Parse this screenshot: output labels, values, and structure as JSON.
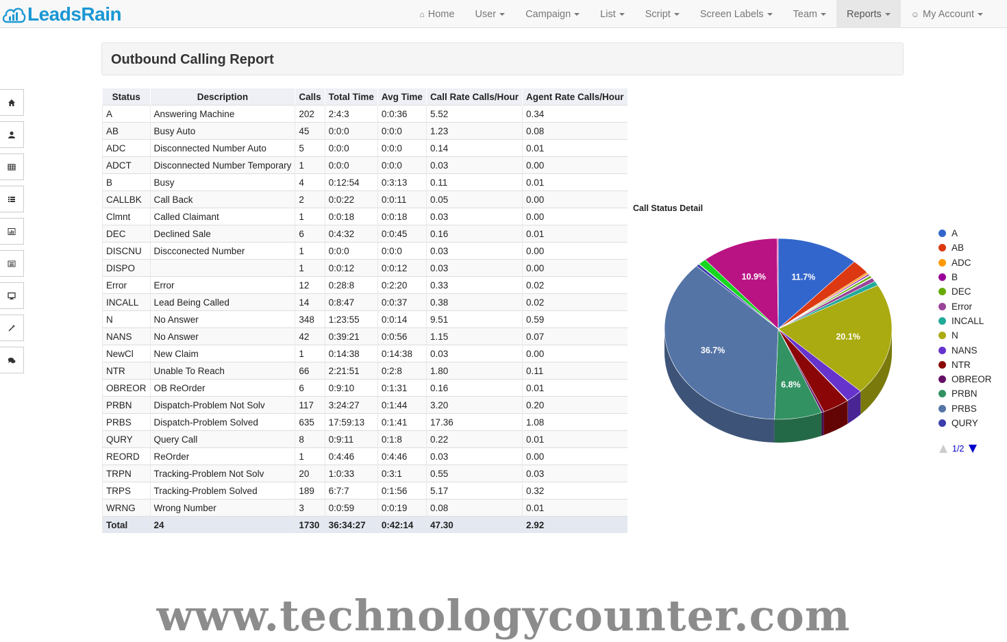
{
  "brand": "LeadsRain",
  "nav": [
    {
      "label": "Home",
      "icon": "home-icon",
      "caret": false
    },
    {
      "label": "User",
      "caret": true
    },
    {
      "label": "Campaign",
      "caret": true
    },
    {
      "label": "List",
      "caret": true
    },
    {
      "label": "Script",
      "caret": true
    },
    {
      "label": "Screen Labels",
      "caret": true
    },
    {
      "label": "Team",
      "caret": true
    },
    {
      "label": "Reports",
      "caret": true,
      "active": true
    },
    {
      "label": "My Account",
      "icon": "user-icon",
      "caret": true
    }
  ],
  "sidebar": [
    "home-icon",
    "user-icon",
    "table-icon",
    "list-icon",
    "bar-chart-icon",
    "list-alt-icon",
    "desktop-icon",
    "magic-wand-icon",
    "comments-icon"
  ],
  "page_title": "Outbound Calling Report",
  "table": {
    "headers": [
      "Status",
      "Description",
      "Calls",
      "Total Time",
      "Avg Time",
      "Call Rate Calls/Hour",
      "Agent Rate Calls/Hour"
    ],
    "rows": [
      [
        "A",
        "Answering Machine",
        "202",
        "2:4:3",
        "0:0:36",
        "5.52",
        "0.34"
      ],
      [
        "AB",
        "Busy Auto",
        "45",
        "0:0:0",
        "0:0:0",
        "1.23",
        "0.08"
      ],
      [
        "ADC",
        "Disconnected Number Auto",
        "5",
        "0:0:0",
        "0:0:0",
        "0.14",
        "0.01"
      ],
      [
        "ADCT",
        "Disconnected Number Temporary",
        "1",
        "0:0:0",
        "0:0:0",
        "0.03",
        "0.00"
      ],
      [
        "B",
        "Busy",
        "4",
        "0:12:54",
        "0:3:13",
        "0.11",
        "0.01"
      ],
      [
        "CALLBK",
        "Call Back",
        "2",
        "0:0:22",
        "0:0:11",
        "0.05",
        "0.00"
      ],
      [
        "Clmnt",
        "Called Claimant",
        "1",
        "0:0:18",
        "0:0:18",
        "0.03",
        "0.00"
      ],
      [
        "DEC",
        "Declined Sale",
        "6",
        "0:4:32",
        "0:0:45",
        "0.16",
        "0.01"
      ],
      [
        "DISCNU",
        "Discconected Number",
        "1",
        "0:0:0",
        "0:0:0",
        "0.03",
        "0.00"
      ],
      [
        "DISPO",
        "",
        "1",
        "0:0:12",
        "0:0:12",
        "0.03",
        "0.00"
      ],
      [
        "Error",
        "Error",
        "12",
        "0:28:8",
        "0:2:20",
        "0.33",
        "0.02"
      ],
      [
        "INCALL",
        "Lead Being Called",
        "14",
        "0:8:47",
        "0:0:37",
        "0.38",
        "0.02"
      ],
      [
        "N",
        "No Answer",
        "348",
        "1:23:55",
        "0:0:14",
        "9.51",
        "0.59"
      ],
      [
        "NANS",
        "No Answer",
        "42",
        "0:39:21",
        "0:0:56",
        "1.15",
        "0.07"
      ],
      [
        "NewCl",
        "New Claim",
        "1",
        "0:14:38",
        "0:14:38",
        "0.03",
        "0.00"
      ],
      [
        "NTR",
        "Unable To Reach",
        "66",
        "2:21:51",
        "0:2:8",
        "1.80",
        "0.11"
      ],
      [
        "OBREOR",
        "OB ReOrder",
        "6",
        "0:9:10",
        "0:1:31",
        "0.16",
        "0.01"
      ],
      [
        "PRBN",
        "Dispatch-Problem Not Solv",
        "117",
        "3:24:27",
        "0:1:44",
        "3.20",
        "0.20"
      ],
      [
        "PRBS",
        "Dispatch-Problem Solved",
        "635",
        "17:59:13",
        "0:1:41",
        "17.36",
        "1.08"
      ],
      [
        "QURY",
        "Query Call",
        "8",
        "0:9:11",
        "0:1:8",
        "0.22",
        "0.01"
      ],
      [
        "REORD",
        "ReOrder",
        "1",
        "0:4:46",
        "0:4:46",
        "0.03",
        "0.00"
      ],
      [
        "TRPN",
        "Tracking-Problem Not Solv",
        "20",
        "1:0:33",
        "0:3:1",
        "0.55",
        "0.03"
      ],
      [
        "TRPS",
        "Tracking-Problem Solved",
        "189",
        "6:7:7",
        "0:1:56",
        "5.17",
        "0.32"
      ],
      [
        "WRNG",
        "Wrong Number",
        "3",
        "0:0:59",
        "0:0:19",
        "0.08",
        "0.01"
      ]
    ],
    "total": [
      "Total",
      "24",
      "1730",
      "36:34:27",
      "0:42:14",
      "47.30",
      "2.92"
    ]
  },
  "chart_data": {
    "type": "pie",
    "title": "Call Status Detail",
    "categories": [
      "A",
      "AB",
      "ADC",
      "ADCT",
      "B",
      "CALLBK",
      "Clmnt",
      "DEC",
      "DISCNU",
      "DISPO",
      "Error",
      "INCALL",
      "N",
      "NANS",
      "NewCl",
      "NTR",
      "OBREOR",
      "PRBN",
      "PRBS",
      "QURY",
      "REORD",
      "TRPN",
      "TRPS",
      "WRNG"
    ],
    "values": [
      202,
      45,
      5,
      1,
      4,
      2,
      1,
      6,
      1,
      1,
      12,
      14,
      348,
      42,
      1,
      66,
      6,
      117,
      635,
      8,
      1,
      20,
      189,
      3
    ],
    "colors": [
      "#3366cc",
      "#dc3912",
      "#ff9900",
      "#109618",
      "#990099",
      "#0099c6",
      "#dd4477",
      "#66aa00",
      "#b82e2e",
      "#316395",
      "#994499",
      "#22aa99",
      "#aaaa11",
      "#6633cc",
      "#e67300",
      "#8b0707",
      "#651067",
      "#329262",
      "#5574a6",
      "#3b3eac",
      "#b77322",
      "#16d620",
      "#b91383",
      "#f4359e"
    ],
    "slice_labels": [
      {
        "category": "A",
        "text": "11.7%"
      },
      {
        "category": "N",
        "text": "20.1%"
      },
      {
        "category": "PRBN",
        "text": "6.8%"
      },
      {
        "category": "PRBS",
        "text": "36.7%"
      },
      {
        "category": "TRPS",
        "text": "10.9%"
      }
    ],
    "legend_position": "right",
    "legend": [
      {
        "label": "A",
        "color": "#3366cc"
      },
      {
        "label": "AB",
        "color": "#dc3912"
      },
      {
        "label": "ADC",
        "color": "#ff9900"
      },
      {
        "label": "B",
        "color": "#990099"
      },
      {
        "label": "DEC",
        "color": "#66aa00"
      },
      {
        "label": "Error",
        "color": "#994499"
      },
      {
        "label": "INCALL",
        "color": "#22aa99"
      },
      {
        "label": "N",
        "color": "#aaaa11"
      },
      {
        "label": "NANS",
        "color": "#6633cc"
      },
      {
        "label": "NTR",
        "color": "#8b0707"
      },
      {
        "label": "OBREOR",
        "color": "#651067"
      },
      {
        "label": "PRBN",
        "color": "#329262"
      },
      {
        "label": "PRBS",
        "color": "#5574a6"
      },
      {
        "label": "QURY",
        "color": "#3b3eac"
      }
    ],
    "legend_page": "1/2"
  },
  "watermark": "www.technologycounter.com"
}
